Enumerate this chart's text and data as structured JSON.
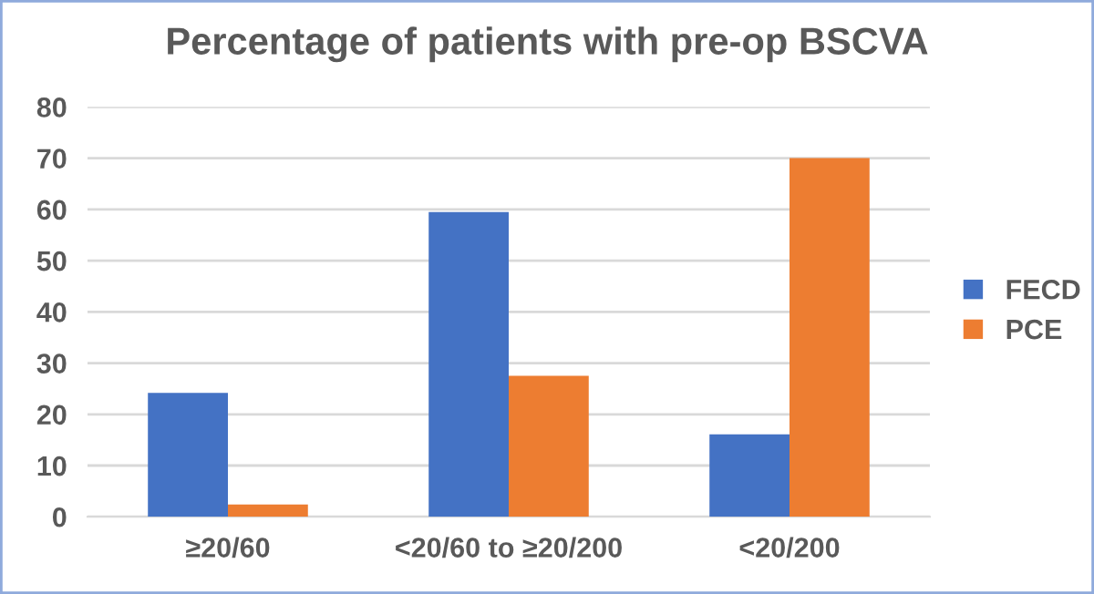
{
  "chart_data": {
    "type": "bar",
    "title": "Percentage of patients with pre-op BSCVA",
    "categories": [
      "≥20/60",
      "<20/60 to ≥20/200",
      "<20/200"
    ],
    "series": [
      {
        "name": "FECD",
        "color": "#4472c4",
        "values": [
          24.2,
          59.5,
          16.1
        ]
      },
      {
        "name": "PCE",
        "color": "#ed7d31",
        "values": [
          2.4,
          27.5,
          70.0
        ]
      }
    ],
    "ylim": [
      0,
      80
    ],
    "yticks": [
      0,
      10,
      20,
      30,
      40,
      50,
      60,
      70,
      80
    ],
    "grid": "y",
    "legend": "right"
  }
}
